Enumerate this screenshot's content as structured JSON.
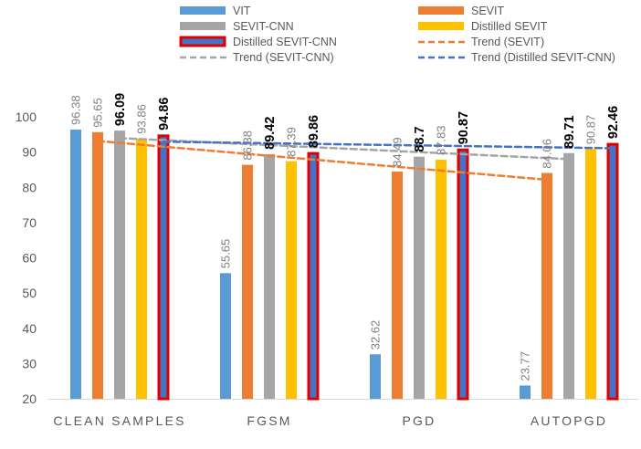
{
  "chart_data": {
    "type": "bar",
    "title": "",
    "xlabel": "",
    "ylabel": "",
    "ylim": [
      20,
      100
    ],
    "yticks": [
      20,
      30,
      40,
      50,
      60,
      70,
      80,
      90,
      100
    ],
    "grid": false,
    "legend_position": "top",
    "categories": [
      "CLEAN SAMPLES",
      "FGSM",
      "PGD",
      "AUTOPGD"
    ],
    "series": [
      {
        "name": "VIT",
        "color": "#5b9bd5",
        "values": [
          96.38,
          55.65,
          32.62,
          23.77
        ],
        "labels": [
          "96.38",
          "55.65",
          "32.62",
          "23.77"
        ],
        "label_style": "rotated",
        "outlined": false
      },
      {
        "name": "SEVIT",
        "color": "#ed7d31",
        "values": [
          95.65,
          86.38,
          84.49,
          84.06
        ],
        "labels": [
          "95.65",
          "86.38",
          "84.49",
          "84.06"
        ],
        "label_style": "rotated",
        "outlined": false
      },
      {
        "name": "SEVIT-CNN",
        "color": "#a5a5a5",
        "values": [
          96.09,
          89.42,
          88.7,
          89.71
        ],
        "labels": [
          "96.09",
          "89.42",
          "88.7",
          "89.71"
        ],
        "label_style": "bold",
        "outlined": false
      },
      {
        "name": "Distilled SEVIT",
        "color": "#ffc000",
        "values": [
          93.86,
          87.39,
          87.83,
          90.87
        ],
        "labels": [
          "93.86",
          "87.39",
          "87.83",
          "90.87"
        ],
        "label_style": "rotated",
        "outlined": false
      },
      {
        "name": "Distilled SEVIT-CNN",
        "color": "#4472c4",
        "outline": "#e00000",
        "values": [
          94.86,
          89.86,
          90.87,
          92.46
        ],
        "labels": [
          "94.86",
          "89.86",
          "90.87",
          "92.46"
        ],
        "label_style": "bold",
        "outlined": true
      }
    ],
    "trends": [
      {
        "name": "Trend (SEVIT)",
        "color": "#ed7d31",
        "series_index": 1
      },
      {
        "name": "Trend (SEVIT-CNN)",
        "color": "#a5a5a5",
        "series_index": 2
      },
      {
        "name": "Trend (Distilled SEVIT-CNN)",
        "color": "#4472c4",
        "series_index": 4
      }
    ],
    "legend": [
      {
        "name": "VIT",
        "kind": "bar",
        "color": "#5b9bd5"
      },
      {
        "name": "SEVIT",
        "kind": "bar",
        "color": "#ed7d31"
      },
      {
        "name": "SEVIT-CNN",
        "kind": "bar",
        "color": "#a5a5a5"
      },
      {
        "name": "Distilled SEVIT",
        "kind": "bar",
        "color": "#ffc000"
      },
      {
        "name": "Distilled SEVIT-CNN",
        "kind": "bar-outlined",
        "color": "#4472c4",
        "outline": "#e00000"
      },
      {
        "name": "Trend (SEVIT)",
        "kind": "line",
        "color": "#ed7d31"
      },
      {
        "name": "Trend (SEVIT-CNN)",
        "kind": "line",
        "color": "#a5a5a5"
      },
      {
        "name": "Trend (Distilled SEVIT-CNN)",
        "kind": "line",
        "color": "#4472c4"
      }
    ]
  }
}
